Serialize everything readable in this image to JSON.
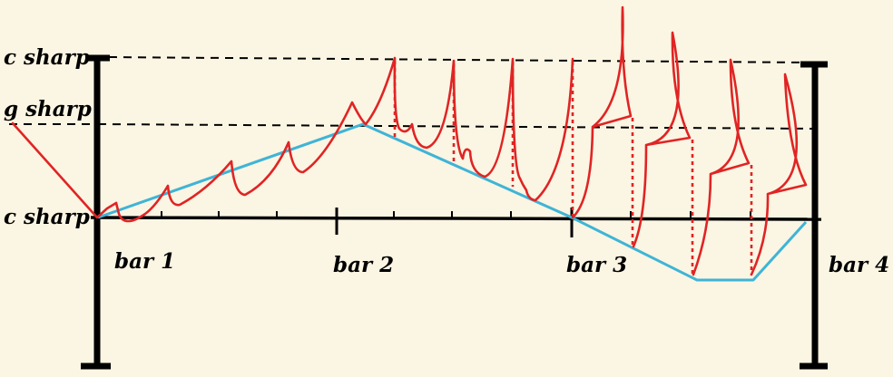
{
  "pitch_labels": {
    "top": "c sharp",
    "middle": "g sharp",
    "bottom": "c sharp"
  },
  "bar_labels": [
    "bar 1",
    "bar 2",
    "bar 3",
    "bar 4"
  ],
  "colors": {
    "background": "#fbf5e3",
    "contour_line": "#3fb4d6",
    "waveform": "#e02424",
    "axis": "#000000"
  }
}
